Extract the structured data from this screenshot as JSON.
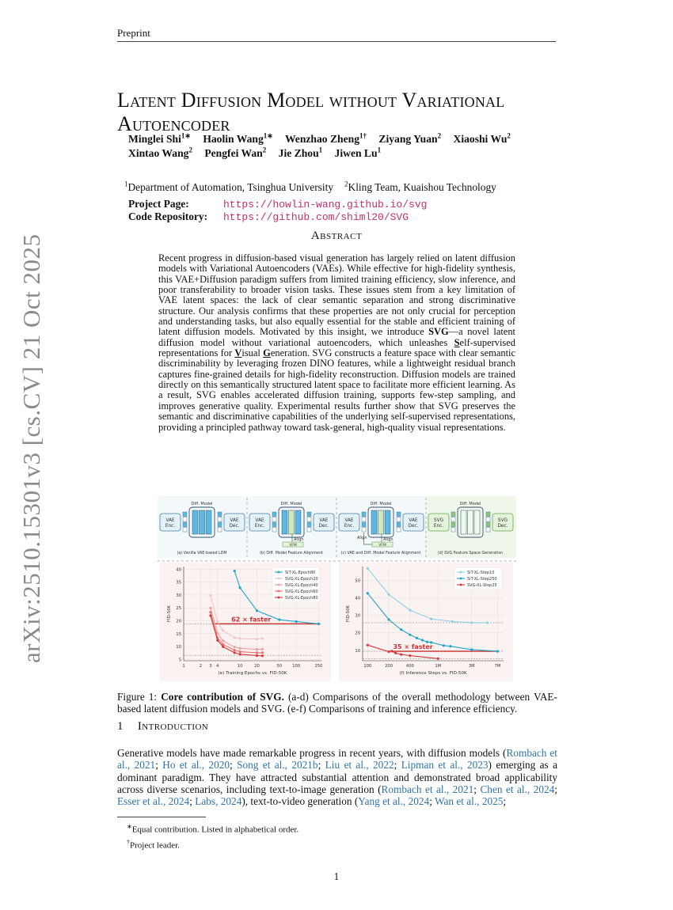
{
  "header": "Preprint",
  "side_stamp": "arXiv:2510.15301v3  [cs.CV]  21 Oct 2025",
  "title_line1": "Latent Diffusion Model without Variational",
  "title_line2": "Autoencoder",
  "authors": [
    {
      "name": "Minglei Shi",
      "sup": "1∗"
    },
    {
      "name": "Haolin Wang",
      "sup": "1∗"
    },
    {
      "name": "Wenzhao Zheng",
      "sup": "1†"
    },
    {
      "name": "Ziyang Yuan",
      "sup": "2"
    },
    {
      "name": "Xiaoshi Wu",
      "sup": "2"
    },
    {
      "name": "Xintao Wang",
      "sup": "2"
    },
    {
      "name": "Pengfei Wan",
      "sup": "2"
    },
    {
      "name": "Jie Zhou",
      "sup": "1"
    },
    {
      "name": "Jiwen Lu",
      "sup": "1"
    }
  ],
  "affiliations": [
    {
      "sup": "1",
      "name": "Department of Automation, Tsinghua University"
    },
    {
      "sup": "2",
      "name": "Kling Team, Kuaishou Technology"
    }
  ],
  "links": [
    {
      "label": "Project Page:",
      "url": "https://howlin-wang.github.io/svg"
    },
    {
      "label": "Code Repository:",
      "url": "https://github.com/shiml20/SVG"
    }
  ],
  "abstract_heading": "Abstract",
  "abstract": [
    [
      "Recent progress in diffusion-based visual generation has largely relied on latent diffusion models with Variational Autoencoders (VAEs). While effective for high-fidelity synthesis, this VAE+Diffusion paradigm suffers from limited training efficiency, slow inference, and poor transferability to broader vision tasks. These issues stem from a key limitation of VAE latent spaces: the lack of clear semantic separation and strong discriminative structure. Our analysis confirms that these properties are not only crucial for perception and understanding tasks, but also equally essential for the stable and efficient training of latent diffusion models. Motivated by this insight, we introduce ",
      ""
    ],
    [
      "SVG",
      "b"
    ],
    [
      "—a novel latent diffusion model without variational autoencoders, which unleashes ",
      ""
    ],
    [
      "S",
      "bu"
    ],
    [
      "elf-supervised representations for ",
      ""
    ],
    [
      "V",
      "bu"
    ],
    [
      "isual ",
      ""
    ],
    [
      "G",
      "bu"
    ],
    [
      "eneration. SVG constructs a feature space with clear semantic discriminability by leveraging frozen DINO features, while a lightweight residual branch captures fine-grained details for high-fidelity reconstruction. Diffusion models are trained directly on this semantically structured latent space to facilitate more efficient learning. As a result, SVG enables accelerated diffusion training, supports few-step sampling, and improves generative quality. Experimental results further show that SVG preserves the semantic and discriminative capabilities of the underlying self-supervised representations, providing a principled pathway toward task-general, high-quality visual representations.",
      ""
    ]
  ],
  "figure": {
    "diagram": {
      "diff_model": "Diff. Model",
      "vae_enc": [
        "VAE",
        "Enc."
      ],
      "vae_dec": [
        "VAE",
        "Dec."
      ],
      "svg_enc": [
        "SVG",
        "Enc."
      ],
      "svg_dec": [
        "SVG",
        "Dec."
      ],
      "align": "Align",
      "vfm": "VFM",
      "panels": [
        "(a) Vanilla VAE-based LDM",
        "(b) Diff. Model Feature Alignment",
        "(c) VAE and Diff. Model Feature Alignment",
        "(d) SVG Feature Space Generation"
      ],
      "colors": {
        "vae": "#5bb8e0",
        "svg": "#8cc870",
        "bg_svg": "#eef7ea",
        "bg": "#f3f8fb"
      }
    }
  },
  "chart_data": [
    {
      "type": "line",
      "title": "(e) Training Epochs vs. FID-50K",
      "xlabel": "(e) Training Epochs vs. FID-50K",
      "ylabel": "FID-50K",
      "xscale": "log",
      "xlim": [
        1,
        280
      ],
      "ylim": [
        4.5,
        41
      ],
      "xticks": [
        1,
        2,
        3,
        4,
        10,
        20,
        50,
        100,
        250
      ],
      "xtick_labels": [
        "1",
        "2",
        "3",
        "4",
        "10",
        "20",
        "50",
        "100",
        "250"
      ],
      "yticks": [
        5,
        10,
        15,
        20,
        25,
        30,
        35,
        40
      ],
      "grid": true,
      "legend": "top-right",
      "reference_lines": [
        18.8,
        6.6
      ],
      "annotation": {
        "text": "62 × faster",
        "y": 18.8,
        "x_from": 3.5,
        "x_to": 250
      },
      "series": [
        {
          "name": "SiT-XL-Epoch80",
          "color": "#1fa6c8",
          "x": [
            8,
            10,
            20,
            50,
            100,
            250
          ],
          "y": [
            39.3,
            32.8,
            23.9,
            20.4,
            19.7,
            18.8
          ]
        },
        {
          "name": "SVG-XL-Epoch20",
          "color": "#f4c4c4",
          "x": [
            3,
            4,
            5,
            8,
            10,
            20,
            25
          ],
          "y": [
            29.8,
            19.5,
            16.2,
            13.4,
            13.1,
            12.9,
            13.1
          ]
        },
        {
          "name": "SVG-XL-Epoch40",
          "color": "#eea0a0",
          "x": [
            3,
            4,
            5,
            8,
            10,
            20,
            25
          ],
          "y": [
            24.9,
            15.2,
            12.2,
            9.8,
            9.3,
            8.9,
            9.0
          ]
        },
        {
          "name": "SVG-XL-Epoch60",
          "color": "#e47070",
          "x": [
            3,
            4,
            5,
            8,
            10,
            20,
            25
          ],
          "y": [
            23.3,
            13.3,
            10.8,
            8.6,
            8.0,
            7.6,
            7.6
          ]
        },
        {
          "name": "SVG-XL-Epoch80",
          "color": "#d63a3a",
          "x": [
            3,
            4,
            5,
            8,
            10,
            20,
            25
          ],
          "y": [
            22.0,
            12.4,
            9.9,
            7.6,
            7.0,
            6.5,
            6.4
          ]
        }
      ]
    },
    {
      "type": "line",
      "title": "(f) Inference Steps vs. FID-50K",
      "xlabel": "(f) Inference Steps vs. FID-50K",
      "ylabel": "FID-50K",
      "xscale": "log",
      "xlim": [
        85,
        8500
      ],
      "ylim": [
        4,
        58
      ],
      "xticks": [
        100,
        200,
        400,
        1000,
        3000,
        7000
      ],
      "xtick_labels": [
        "100",
        "200",
        "400",
        "1M",
        "3M",
        "7M"
      ],
      "yticks": [
        10,
        20,
        30,
        40,
        50
      ],
      "grid": true,
      "legend": "top-right",
      "reference_lines": [
        25.8,
        9.4,
        5.2
      ],
      "annotation": {
        "text": "35 × faster",
        "y": 9.4,
        "x_from": 220,
        "x_to": 7000
      },
      "series": [
        {
          "name": "SiT-XL-Step10",
          "color": "#8fd0e6",
          "x": [
            100,
            200,
            400,
            800,
            1600,
            3000,
            5000
          ],
          "y": [
            57,
            42,
            33,
            28,
            26.5,
            25.8,
            25.8
          ]
        },
        {
          "name": "SiT-XL-Step250",
          "color": "#1fa6c8",
          "x": [
            100,
            200,
            300,
            400,
            500,
            600,
            700,
            800,
            1200,
            1500,
            3000,
            7000
          ],
          "y": [
            42.7,
            27.6,
            21.8,
            18.9,
            17,
            15.8,
            14.8,
            14.5,
            12.7,
            12.3,
            10.4,
            9.4
          ]
        },
        {
          "name": "SVG-XL-Step25",
          "color": "#d63a3a",
          "x": [
            100,
            200,
            220,
            250,
            300,
            400,
            1000
          ],
          "y": [
            13,
            9.2,
            9.5,
            8.4,
            7.6,
            6.9,
            5.2
          ]
        }
      ]
    }
  ],
  "caption": {
    "label": "Figure 1: ",
    "bold": "Core contribution of SVG.",
    "text": " (a-d) Comparisons of the overall methodology between VAE-based latent diffusion models and SVG. (e-f) Comparisons of training and inference efficiency."
  },
  "intro_heading": {
    "num": "1",
    "title": "Introduction"
  },
  "intro": [
    [
      "Generative models have made remarkable progress in recent years, with diffusion models (",
      ""
    ],
    [
      "Rombach et al., 2021",
      "c"
    ],
    [
      "; ",
      ""
    ],
    [
      "Ho et al., 2020",
      "c"
    ],
    [
      "; ",
      ""
    ],
    [
      "Song et al., 2021b",
      "c"
    ],
    [
      "; ",
      ""
    ],
    [
      "Liu et al., 2022",
      "c"
    ],
    [
      "; ",
      ""
    ],
    [
      "Lipman et al., 2023",
      "c"
    ],
    [
      ") emerging as a dominant paradigm. They have attracted substantial attention and demonstrated broad applicability across diverse scenarios, including text-to-image generation (",
      ""
    ],
    [
      "Rombach et al., 2021",
      "c"
    ],
    [
      "; ",
      ""
    ],
    [
      "Chen et al., 2024",
      "c"
    ],
    [
      "; ",
      ""
    ],
    [
      "Esser et al., 2024",
      "c"
    ],
    [
      "; ",
      ""
    ],
    [
      "Labs, 2024",
      "c"
    ],
    [
      "), text-to-video generation (",
      ""
    ],
    [
      "Yang et al., 2024",
      "c"
    ],
    [
      "; ",
      ""
    ],
    [
      "Wan et al., 2025",
      "c"
    ],
    [
      ";",
      ""
    ]
  ],
  "footnotes": [
    {
      "sup": "∗",
      "text": "Equal contribution. Listed in alphabetical order."
    },
    {
      "sup": "†",
      "text": "Project leader."
    }
  ],
  "page_number": "1"
}
